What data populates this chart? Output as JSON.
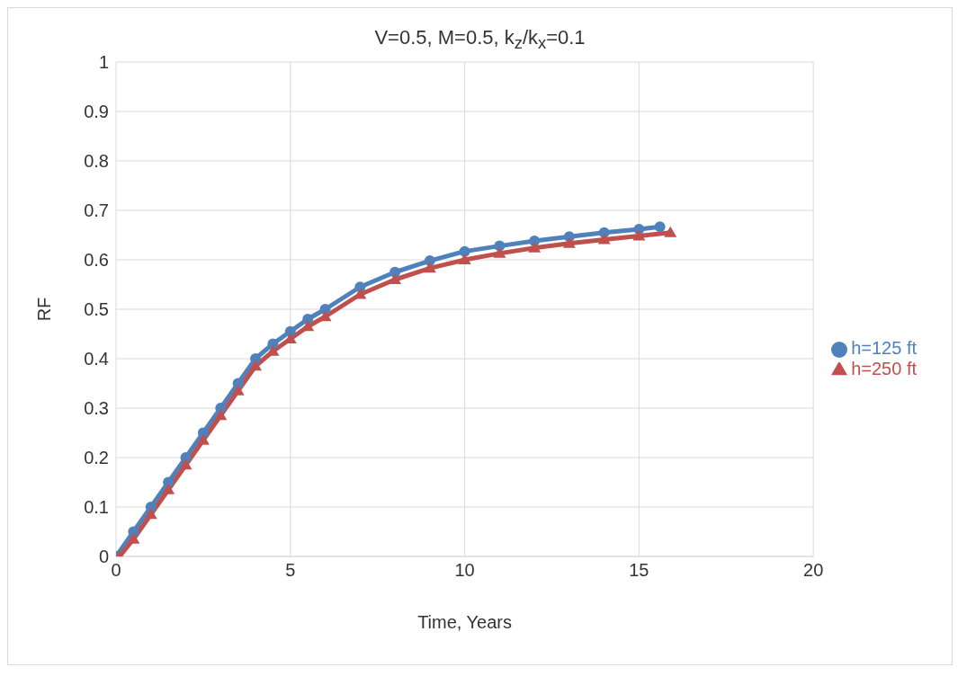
{
  "chart_data": {
    "type": "line",
    "title": "V=0.5, M=0.5, k$_{z}$/k$_{x}$=0.1",
    "xlabel": "Time, Years",
    "ylabel": "RF",
    "xlim": [
      0,
      20
    ],
    "xticks": [
      0,
      5,
      10,
      15,
      20
    ],
    "ylim": [
      0,
      1
    ],
    "yticks": [
      0,
      0.1,
      0.2,
      0.3,
      0.4,
      0.5,
      0.6,
      0.7,
      0.8,
      0.9,
      1
    ],
    "grid": true,
    "legend": "right",
    "line_style": "solid",
    "series": [
      {
        "name": "h=125 ft",
        "color": "#4f81bd",
        "marker": "circle",
        "x": [
          0,
          0.5,
          1,
          1.5,
          2,
          2.5,
          3,
          3.5,
          4,
          4.5,
          5,
          5.5,
          6,
          7,
          8,
          9,
          10,
          11,
          12,
          13,
          14,
          15,
          15.6
        ],
        "values": [
          0,
          0.05,
          0.1,
          0.15,
          0.2,
          0.25,
          0.3,
          0.35,
          0.4,
          0.43,
          0.455,
          0.48,
          0.5,
          0.545,
          0.575,
          0.598,
          0.617,
          0.628,
          0.638,
          0.647,
          0.655,
          0.662,
          0.667
        ]
      },
      {
        "name": "h=250 ft",
        "color": "#c0504d",
        "marker": "triangle",
        "x": [
          0.1,
          0.5,
          1,
          1.5,
          2,
          2.5,
          3,
          3.5,
          4,
          4.5,
          5,
          5.5,
          6,
          7,
          8,
          9,
          10,
          11,
          12,
          13,
          14,
          15,
          15.9
        ],
        "values": [
          0,
          0.035,
          0.085,
          0.135,
          0.185,
          0.235,
          0.285,
          0.335,
          0.385,
          0.415,
          0.44,
          0.465,
          0.485,
          0.53,
          0.56,
          0.583,
          0.6,
          0.613,
          0.624,
          0.633,
          0.641,
          0.648,
          0.655
        ]
      }
    ]
  }
}
